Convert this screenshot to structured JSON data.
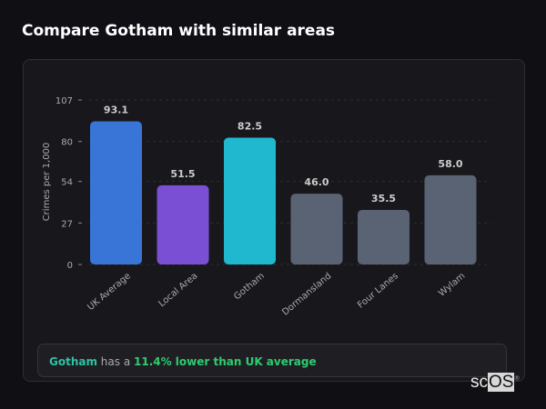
{
  "title": "Compare Gotham with similar areas",
  "chart_data": {
    "type": "bar",
    "ylabel": "Crimes per 1,000",
    "ylim": [
      0,
      107
    ],
    "yticks": [
      0,
      27,
      54,
      80,
      107
    ],
    "grid": true,
    "categories": [
      "UK Average",
      "Local Area",
      "Gotham",
      "Dormansland",
      "Four Lanes",
      "Wylam"
    ],
    "values": [
      93.1,
      51.5,
      82.5,
      46.0,
      35.5,
      58.0
    ],
    "labels": [
      "93.1",
      "51.5",
      "82.5",
      "46.0",
      "35.5",
      "58.0"
    ],
    "colors": [
      "#3875d7",
      "#7b4fd4",
      "#20b8cf",
      "#5a6373",
      "#5a6373",
      "#5a6373"
    ]
  },
  "insight": {
    "area": "Gotham",
    "middle": " has a ",
    "comparison": "11.4% lower than UK average"
  },
  "logo": {
    "prefix": "sc",
    "boxed": "OS",
    "mark": "®"
  }
}
